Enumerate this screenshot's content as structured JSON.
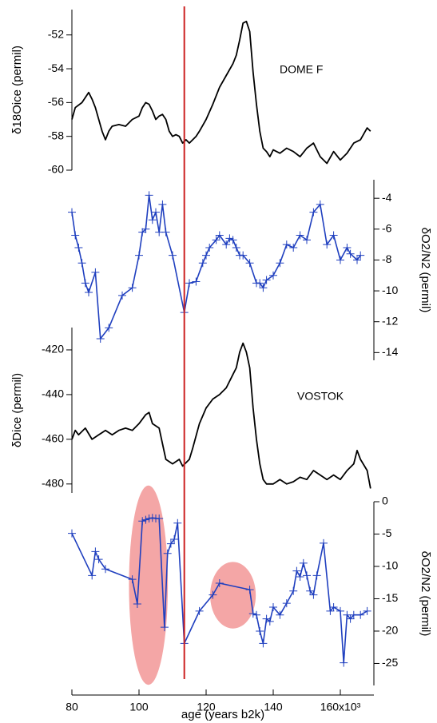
{
  "chart_data": [
    {
      "type": "line",
      "yaxis_side": "left",
      "ylabel": "δ18Oice (permil)",
      "annotation": "DOME F",
      "color": "#000000",
      "ylim": [
        -60,
        -50.5
      ],
      "yticks": [
        -60,
        -58,
        -56,
        -54,
        -52
      ],
      "x": [
        80,
        81,
        83,
        85,
        86,
        87,
        88,
        89,
        90,
        91,
        92,
        94,
        96,
        98,
        100,
        101,
        102,
        103,
        104,
        105,
        106,
        107,
        108,
        109,
        110,
        111,
        112,
        113,
        114,
        115,
        117,
        118,
        120,
        122,
        124,
        126,
        128,
        129,
        130,
        131,
        132,
        133,
        134,
        135,
        136,
        137,
        138,
        139,
        140,
        142,
        144,
        146,
        148,
        150,
        152,
        154,
        156,
        158,
        160,
        162,
        164,
        166,
        168,
        169
      ],
      "values": [
        -57.0,
        -56.3,
        -56.0,
        -55.4,
        -55.8,
        -56.3,
        -57.0,
        -57.7,
        -58.2,
        -57.7,
        -57.4,
        -57.3,
        -57.4,
        -57.0,
        -56.8,
        -56.3,
        -56.0,
        -56.1,
        -56.5,
        -57.0,
        -56.8,
        -56.7,
        -57.0,
        -57.7,
        -58.0,
        -57.9,
        -58.0,
        -58.4,
        -58.2,
        -58.4,
        -58.0,
        -57.7,
        -57.0,
        -56.1,
        -55.1,
        -54.4,
        -53.7,
        -53.2,
        -52.3,
        -51.3,
        -51.2,
        -51.8,
        -54.2,
        -56.1,
        -57.7,
        -58.7,
        -58.9,
        -59.2,
        -58.8,
        -59.0,
        -58.7,
        -58.9,
        -59.2,
        -58.7,
        -58.4,
        -59.2,
        -59.6,
        -58.9,
        -59.4,
        -59.0,
        -58.4,
        -58.2,
        -57.5,
        -57.7
      ]
    },
    {
      "type": "line",
      "yaxis_side": "right",
      "ylabel": "δO2/N2 (permil)",
      "color": "#1f3fbf",
      "marker": "+",
      "ylim": [
        -14.5,
        -2.8
      ],
      "yticks": [
        -14,
        -12,
        -10,
        -8,
        -6,
        -4
      ],
      "x": [
        80,
        81,
        82,
        83,
        84,
        85,
        87,
        88.5,
        91,
        95,
        98,
        100,
        101,
        102,
        103,
        104,
        105,
        106,
        107,
        108,
        110,
        113.5,
        115,
        117,
        119,
        120,
        121,
        123,
        124,
        126,
        127,
        128,
        129,
        130,
        131,
        133,
        135,
        136,
        137,
        138,
        140,
        142,
        144,
        146,
        148,
        150,
        152,
        154,
        156,
        158,
        160,
        162,
        163,
        165,
        166
      ],
      "values": [
        -4.9,
        -6.4,
        -7.2,
        -8.2,
        -9.5,
        -10.1,
        -8.8,
        -13.1,
        -12.4,
        -10.3,
        -9.8,
        -7.7,
        -6.2,
        -6.0,
        -3.8,
        -5.4,
        -4.9,
        -6.2,
        -4.4,
        -6.2,
        -7.7,
        -11.4,
        -9.5,
        -9.4,
        -8.2,
        -7.7,
        -7.2,
        -6.7,
        -6.4,
        -7.0,
        -6.6,
        -6.7,
        -7.2,
        -7.7,
        -7.7,
        -8.2,
        -9.5,
        -9.5,
        -9.8,
        -9.3,
        -9.0,
        -8.2,
        -7.0,
        -7.2,
        -6.4,
        -6.7,
        -4.9,
        -4.4,
        -7.0,
        -6.4,
        -8.0,
        -7.2,
        -7.6,
        -8.0,
        -7.7
      ]
    },
    {
      "type": "line",
      "yaxis_side": "left",
      "ylabel": "δDice (permil)",
      "annotation": "VOSTOK",
      "color": "#000000",
      "ylim": [
        -484,
        -410
      ],
      "yticks": [
        -480,
        -460,
        -440,
        -420
      ],
      "x": [
        80,
        81,
        82,
        84,
        86,
        88,
        90,
        92,
        94,
        96,
        98,
        100,
        102,
        103,
        104,
        106,
        107,
        108,
        110,
        112,
        113,
        115,
        116,
        118,
        120,
        122,
        124,
        126,
        128,
        129,
        130,
        131,
        132,
        133,
        134,
        135,
        136,
        137,
        138,
        140,
        142,
        144,
        146,
        148,
        150,
        152,
        154,
        156,
        158,
        160,
        162,
        164,
        165,
        166,
        168,
        169
      ],
      "values": [
        -460,
        -456,
        -458,
        -455,
        -460,
        -458,
        -456,
        -458,
        -456,
        -455,
        -456,
        -453,
        -449,
        -448,
        -453,
        -455,
        -462,
        -469,
        -471,
        -469,
        -472,
        -469,
        -464,
        -453,
        -446,
        -442,
        -440,
        -437,
        -431,
        -428,
        -421,
        -417,
        -421,
        -428,
        -446,
        -460,
        -471,
        -478,
        -480,
        -480,
        -478,
        -480,
        -479,
        -477,
        -478,
        -474,
        -476,
        -478,
        -476,
        -478,
        -474,
        -471,
        -465,
        -469,
        -474,
        -482
      ]
    },
    {
      "type": "line",
      "yaxis_side": "right",
      "ylabel": "δO2/N2 (permil)",
      "color": "#1f3fbf",
      "marker": "+",
      "ylim": [
        -28.4,
        0
      ],
      "yticks": [
        -25,
        -20,
        -15,
        -10,
        -5,
        0
      ],
      "xlim": [
        80,
        170
      ],
      "xticks": [
        80,
        100,
        120,
        140,
        {
          "value": 160,
          "label": "160x10³"
        }
      ],
      "xlabel": "age (years b2k)",
      "reference_line": {
        "x": 113.5,
        "color": "#cc2222"
      },
      "highlights": [
        {
          "x": [
            97,
            108.6
          ],
          "y": [
            -28.3,
            2.5
          ],
          "color": "#f4a6a6"
        },
        {
          "x": [
            121.2,
            134.8
          ],
          "y": [
            -19.6,
            -9.3
          ],
          "color": "#f4a6a6"
        }
      ],
      "x": [
        80,
        86,
        87,
        88,
        90,
        98,
        99.5,
        101,
        102,
        103,
        104,
        105,
        106,
        107.6,
        108.5,
        109.5,
        110.5,
        111.5,
        113.5,
        118,
        122,
        124,
        133,
        134,
        135,
        136,
        137,
        138,
        139,
        140,
        142,
        144,
        146,
        147,
        148,
        149,
        150,
        151,
        152,
        153,
        155,
        157,
        158,
        160,
        161,
        162,
        163,
        164,
        166,
        168
      ],
      "values": [
        -4.9,
        -11.4,
        -7.7,
        -8.9,
        -10.4,
        -12.0,
        -15.8,
        -3.0,
        -2.8,
        -2.6,
        -2.5,
        -2.6,
        -2.6,
        -19.4,
        -8.0,
        -6.5,
        -5.8,
        -3.3,
        -21.9,
        -16.9,
        -14.4,
        -12.6,
        -13.6,
        -17.3,
        -17.5,
        -20.0,
        -21.9,
        -18.1,
        -18.5,
        -16.3,
        -17.5,
        -15.7,
        -13.8,
        -10.7,
        -11.6,
        -9.5,
        -11.4,
        -13.8,
        -14.4,
        -11.4,
        -6.4,
        -16.9,
        -16.3,
        -16.9,
        -24.9,
        -17.5,
        -18.1,
        -17.5,
        -17.5,
        -16.9
      ]
    }
  ]
}
